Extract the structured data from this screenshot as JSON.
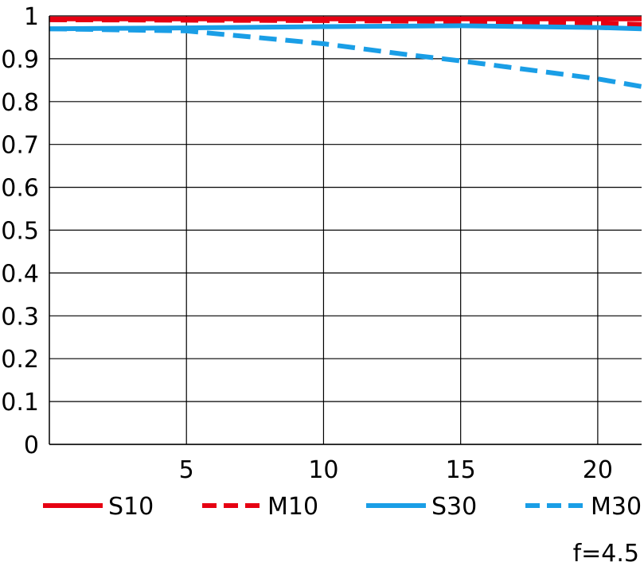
{
  "chart_data": {
    "type": "line",
    "xlim": [
      0,
      21.6
    ],
    "ylim": [
      0,
      1
    ],
    "x_ticks": [
      5,
      10,
      15,
      20
    ],
    "x_tick_labels": [
      "5",
      "10",
      "15",
      "20"
    ],
    "y_ticks": [
      0,
      0.1,
      0.2,
      0.3,
      0.4,
      0.5,
      0.6,
      0.7,
      0.8,
      0.9,
      1
    ],
    "y_tick_labels": [
      "0",
      "0.1",
      "0.2",
      "0.3",
      "0.4",
      "0.5",
      "0.6",
      "0.7",
      "0.8",
      "0.9",
      "1"
    ],
    "grid": true,
    "legend_position": "bottom",
    "note": "f=4.5",
    "series": [
      {
        "name": "S10",
        "color": "#e60012",
        "dash": "solid",
        "x": [
          0,
          5,
          10,
          15,
          20,
          21.6
        ],
        "y": [
          0.993,
          0.993,
          0.993,
          0.993,
          0.993,
          0.993
        ]
      },
      {
        "name": "M10",
        "color": "#e60012",
        "dash": "dashed",
        "x": [
          0,
          5,
          10,
          15,
          20,
          21.6
        ],
        "y": [
          0.991,
          0.99,
          0.989,
          0.987,
          0.983,
          0.98
        ]
      },
      {
        "name": "S30",
        "color": "#1a9ee6",
        "dash": "solid",
        "x": [
          0,
          5,
          10,
          15,
          20,
          21.6
        ],
        "y": [
          0.97,
          0.972,
          0.975,
          0.977,
          0.973,
          0.97
        ]
      },
      {
        "name": "M30",
        "color": "#1a9ee6",
        "dash": "dashed",
        "x": [
          0,
          5,
          10,
          13,
          15,
          18,
          20,
          21.6
        ],
        "y": [
          0.97,
          0.965,
          0.935,
          0.91,
          0.895,
          0.87,
          0.853,
          0.835
        ]
      }
    ]
  }
}
